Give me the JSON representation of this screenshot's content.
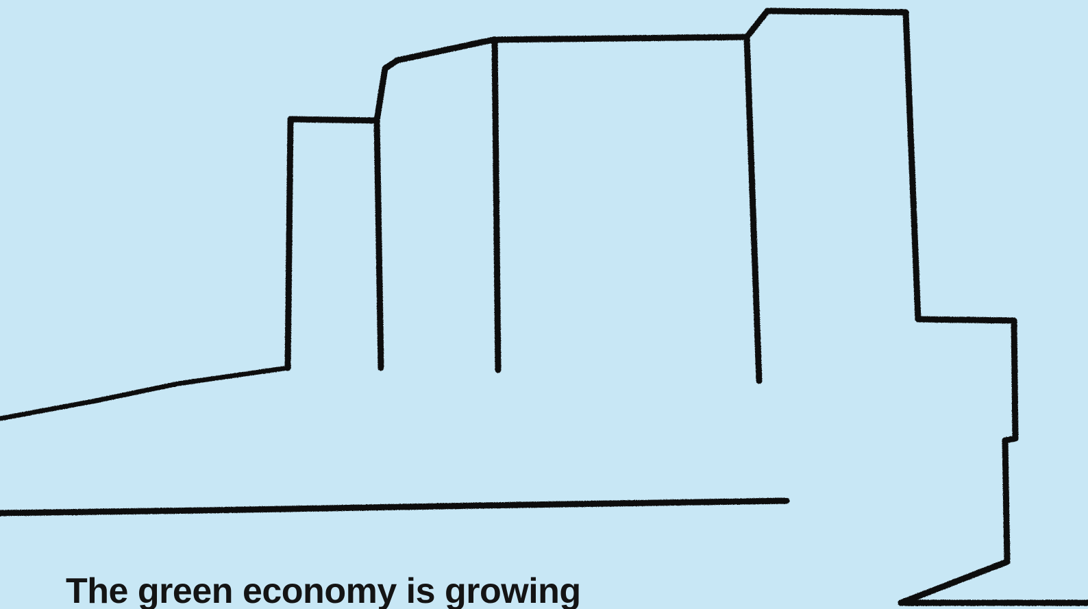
{
  "background_color": "#c8e7f5",
  "stroke_color": "#111111",
  "headline": "The green economy is growing",
  "illustration": "pencil-sketch-buildings"
}
